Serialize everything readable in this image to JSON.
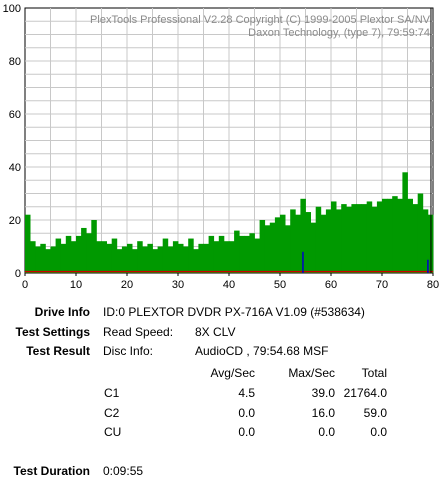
{
  "chart_data": {
    "type": "bar",
    "watermark": [
      "PlexTools Professional V2.28 Copyright (C) 1999-2005 Plextor SA/NV",
      "Daxon Technology, (type 7), 79:59:74"
    ],
    "xlim": [
      0,
      80
    ],
    "ylim": [
      0,
      100
    ],
    "x_ticks": [
      "0",
      "10",
      "20",
      "30",
      "40",
      "50",
      "60",
      "70",
      "80"
    ],
    "y_ticks": [
      "0",
      "20",
      "40",
      "60",
      "80",
      "100"
    ],
    "grid": true,
    "series": [
      {
        "color": "#009900",
        "x": [
          0,
          1,
          2,
          3,
          4,
          5,
          6,
          7,
          8,
          9,
          10,
          11,
          12,
          13,
          14,
          15,
          16,
          17,
          18,
          19,
          20,
          21,
          22,
          23,
          24,
          25,
          26,
          27,
          28,
          29,
          30,
          31,
          32,
          33,
          34,
          35,
          36,
          37,
          38,
          39,
          40,
          41,
          42,
          43,
          44,
          45,
          46,
          47,
          48,
          49,
          50,
          51,
          52,
          53,
          54,
          55,
          56,
          57,
          58,
          59,
          60,
          61,
          62,
          63,
          64,
          65,
          66,
          67,
          68,
          69,
          70,
          71,
          72,
          73,
          74,
          75,
          76,
          77,
          78,
          79
        ],
        "values": [
          22,
          12,
          10,
          11,
          9,
          10,
          13,
          11,
          14,
          12,
          14,
          17,
          15,
          20,
          12,
          12,
          11,
          13,
          9,
          10,
          11,
          9,
          12,
          10,
          11,
          9,
          10,
          13,
          10,
          12,
          11,
          10,
          13,
          9,
          11,
          11,
          14,
          12,
          14,
          12,
          12,
          16,
          14,
          14,
          15,
          13,
          20,
          18,
          19,
          21,
          22,
          18,
          24,
          22,
          28,
          23,
          19,
          25,
          22,
          24,
          27,
          24,
          26,
          25,
          26,
          26,
          26,
          27,
          25,
          27,
          28,
          28,
          29,
          28,
          38,
          28,
          26,
          30,
          24,
          22
        ],
        "peaks_markers": [
          {
            "x": 54.5,
            "y": 8,
            "color": "#0000cc"
          },
          {
            "x": 79.0,
            "y": 5,
            "color": "#0000cc"
          }
        ]
      },
      {
        "color": "#cc0000",
        "x": [
          0,
          80
        ],
        "values": [
          0.5,
          0.5
        ]
      }
    ],
    "end_marker_x": 79.6
  },
  "info": {
    "drive_label": "Drive Info",
    "drive_value": "ID:0 PLEXTOR DVDR PX-716A V1.09 (#538634)",
    "settings_label": "Test Settings",
    "settings_key": "Read Speed:",
    "settings_value": "8X CLV",
    "result_label": "Test Result",
    "result_key": "Disc Info:",
    "result_value": "AudioCD , 79:54.68 MSF",
    "col_avg": "Avg/Sec",
    "col_max": "Max/Sec",
    "col_total": "Total",
    "rows": [
      {
        "name": "C1",
        "avg": "4.5",
        "max": "39.0",
        "total": "21764.0"
      },
      {
        "name": "C2",
        "avg": "0.0",
        "max": "16.0",
        "total": "59.0"
      },
      {
        "name": "CU",
        "avg": "0.0",
        "max": "0.0",
        "total": "0.0"
      }
    ],
    "duration_label": "Test Duration",
    "duration_value": "0:09:55"
  }
}
